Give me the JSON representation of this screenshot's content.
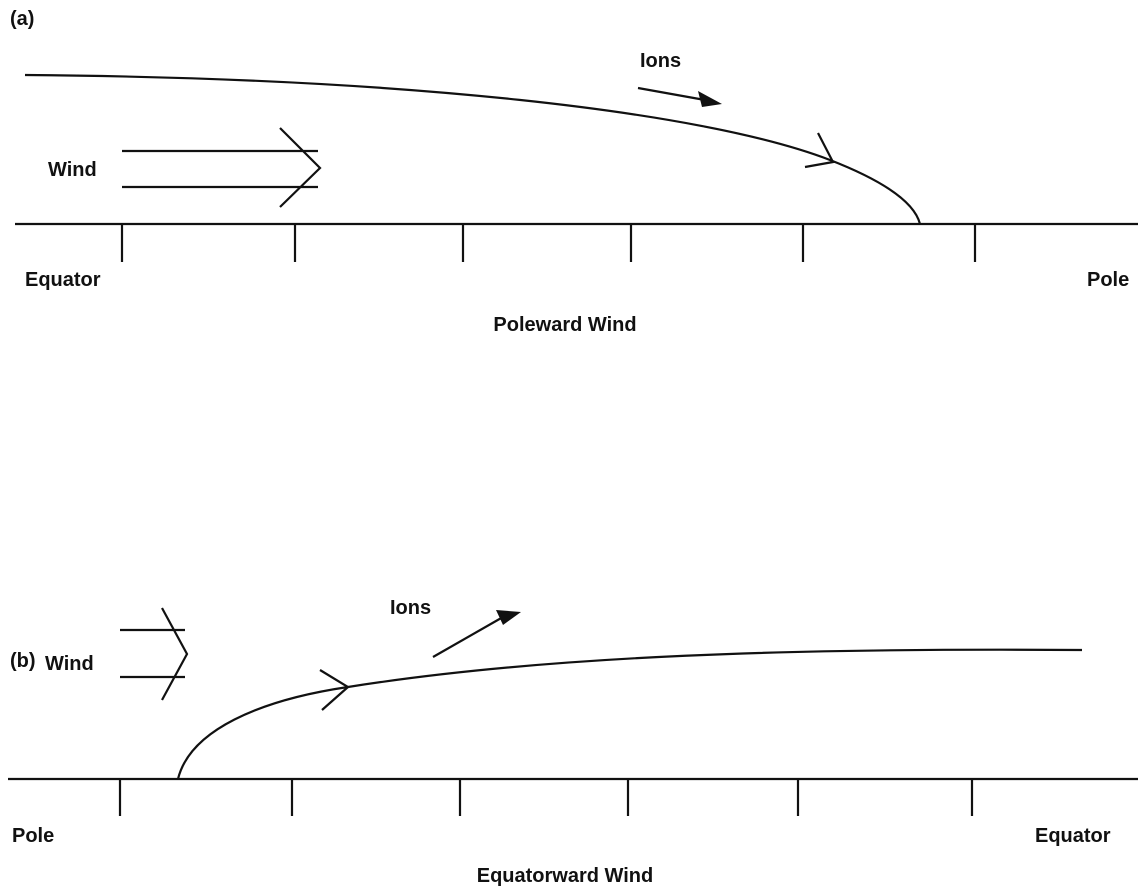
{
  "panels": [
    {
      "label": "(a)",
      "ions": "Ions",
      "wind": "Wind",
      "left": "Equator",
      "right": "Pole",
      "caption": "Poleward Wind"
    },
    {
      "label": "(b)",
      "ions": "Ions",
      "wind": "Wind",
      "left": "Pole",
      "right": "Equator",
      "caption": "Equatorward Wind"
    }
  ]
}
